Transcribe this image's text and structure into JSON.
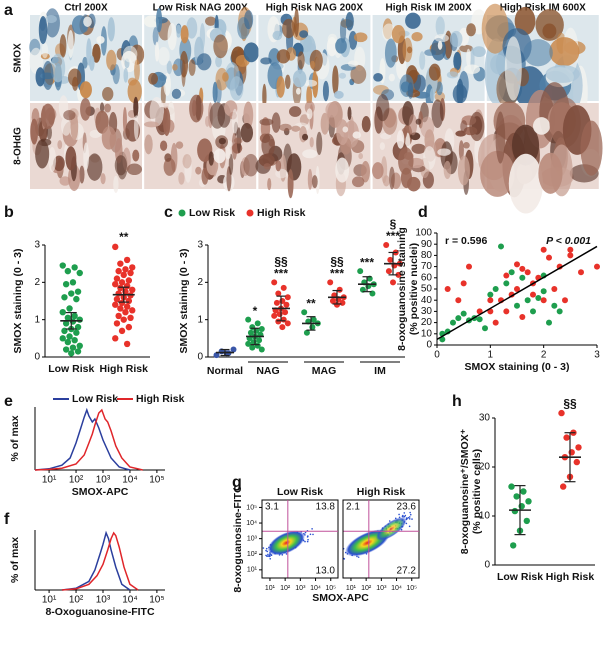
{
  "micrographs": {
    "label": "a",
    "columns": [
      "Ctrl 200X",
      "Low Risk NAG 200X",
      "High Risk NAG 200X",
      "High Risk IM 200X",
      "High Risk IM 600X"
    ],
    "rows": [
      "SMOX",
      "8-OHdG"
    ]
  },
  "chart_data": [
    {
      "type": "strip",
      "label": "b",
      "ylabel": "SMOX staining (0 - 3)",
      "categories": [
        "Low Risk",
        "High Risk"
      ],
      "colors": [
        "#1e9e4e",
        "#e8322a"
      ],
      "values": [
        [
          2.45,
          2.4,
          2.3,
          2.25,
          2.0,
          1.95,
          1.75,
          1.7,
          1.6,
          1.55,
          1.3,
          1.2,
          1.1,
          1.05,
          1.0,
          0.95,
          0.9,
          0.8,
          0.75,
          0.7,
          0.65,
          0.55,
          0.5,
          0.45,
          0.4,
          0.3,
          0.25,
          0.2,
          0.15,
          0.1
        ],
        [
          2.95,
          2.6,
          2.5,
          2.4,
          2.35,
          2.3,
          2.25,
          2.2,
          2.1,
          2.05,
          2.0,
          1.95,
          1.9,
          1.85,
          1.8,
          1.75,
          1.7,
          1.65,
          1.6,
          1.55,
          1.5,
          1.45,
          1.4,
          1.35,
          1.3,
          1.25,
          1.2,
          1.1,
          1.05,
          1.0,
          0.9,
          0.8,
          0.7,
          0.5,
          0.35
        ]
      ],
      "means": [
        0.97,
        1.67
      ],
      "errors": [
        0.22,
        0.2
      ],
      "significance": [
        null,
        "**"
      ],
      "ylim": [
        0,
        3
      ],
      "yticks": [
        0,
        1,
        2,
        3
      ]
    },
    {
      "type": "strip_grouped",
      "label": "c",
      "ylabel": "SMOX staining (0 - 3)",
      "control": {
        "name": "Normal",
        "color": "#3a56a8",
        "values": [
          0.05,
          0.1,
          0.15,
          0.2,
          0.1
        ],
        "mean": 0.12,
        "error": 0.08
      },
      "categories": [
        "NAG",
        "MAG",
        "IM"
      ],
      "series": [
        {
          "name": "Low Risk",
          "color": "#1e9e4e",
          "values": [
            [
              1.0,
              0.9,
              0.8,
              0.75,
              0.7,
              0.65,
              0.6,
              0.55,
              0.5,
              0.45,
              0.4,
              0.35,
              0.3,
              0.25,
              0.2
            ],
            [
              1.2,
              1.0,
              0.95,
              0.9,
              0.8,
              0.65
            ],
            [
              2.3,
              2.1,
              2.0,
              1.95,
              1.9,
              1.8,
              1.7
            ]
          ],
          "means": [
            0.55,
            0.9,
            1.95
          ],
          "errors": [
            0.22,
            0.18,
            0.2
          ],
          "annotations": [
            [
              "*"
            ],
            [
              "**"
            ],
            [
              "***"
            ]
          ]
        },
        {
          "name": "High Risk",
          "color": "#e8322a",
          "values": [
            [
              2.0,
              1.85,
              1.7,
              1.6,
              1.5,
              1.45,
              1.4,
              1.3,
              1.25,
              1.2,
              1.15,
              1.1,
              1.0,
              0.95,
              0.9,
              0.8
            ],
            [
              2.0,
              1.8,
              1.65,
              1.6,
              1.55,
              1.5,
              1.45,
              1.4
            ],
            [
              3.0,
              2.8,
              2.6,
              2.5,
              2.45,
              2.3,
              2.2,
              2.0
            ]
          ],
          "means": [
            1.3,
            1.6,
            2.5
          ],
          "errors": [
            0.33,
            0.18,
            0.3
          ],
          "annotations": [
            [
              "§§",
              "***"
            ],
            [
              "§§",
              "***"
            ],
            [
              "§",
              "***"
            ]
          ]
        }
      ],
      "ylim": [
        0,
        3
      ],
      "yticks": [
        0,
        1,
        2,
        3
      ]
    },
    {
      "type": "scatter",
      "label": "d",
      "ylabel": [
        "8-oxoguanosine staining",
        "(% positive nuclei)"
      ],
      "xlabel": "SMOX staining (0 - 3)",
      "annotations": [
        "r = 0.596",
        "P < 0.001"
      ],
      "series": [
        {
          "name": "Low Risk",
          "color": "#1e9e4e",
          "x": [
            0.1,
            0.1,
            0.2,
            0.3,
            0.4,
            0.5,
            0.6,
            0.7,
            0.8,
            0.9,
            1.0,
            1.1,
            1.2,
            1.3,
            1.5,
            1.6,
            1.7,
            1.8,
            1.9,
            2.0,
            2.1,
            2.2,
            2.3,
            2.0,
            1.4
          ],
          "values": [
            10,
            5,
            12,
            20,
            24,
            28,
            22,
            24,
            23,
            15,
            45,
            50,
            88,
            55,
            35,
            60,
            40,
            30,
            42,
            48,
            20,
            35,
            30,
            62,
            65
          ]
        },
        {
          "name": "High Risk",
          "color": "#e8322a",
          "x": [
            0.2,
            0.4,
            0.5,
            0.6,
            0.8,
            1.0,
            1.0,
            1.1,
            1.2,
            1.3,
            1.3,
            1.4,
            1.5,
            1.5,
            1.6,
            1.6,
            1.7,
            1.8,
            1.8,
            1.9,
            2.0,
            2.0,
            2.1,
            2.2,
            2.3,
            2.4,
            2.5,
            2.5,
            2.7,
            3.0
          ],
          "values": [
            50,
            40,
            55,
            70,
            30,
            30,
            40,
            20,
            40,
            30,
            62,
            45,
            72,
            50,
            68,
            25,
            65,
            45,
            55,
            60,
            40,
            85,
            78,
            50,
            70,
            40,
            80,
            85,
            65,
            70
          ]
        }
      ],
      "fit": {
        "x": [
          0,
          3
        ],
        "y": [
          5,
          88
        ]
      },
      "xlim": [
        0,
        3
      ],
      "xticks": [
        0,
        1,
        2,
        3
      ],
      "ylim": [
        0,
        100
      ],
      "yticks": [
        0,
        10,
        20,
        30,
        40,
        50,
        60,
        70,
        80,
        90,
        100
      ]
    },
    {
      "type": "line",
      "label": "e",
      "ylabel": "% of max",
      "xlabel": "SMOX-APC",
      "xscale": "log",
      "legend": true,
      "series": [
        {
          "name": "Low Risk",
          "color": "#2b3f9e",
          "x": [
            3,
            10,
            30,
            60,
            100,
            150,
            200,
            250,
            300,
            400,
            500,
            700,
            1000,
            2000,
            4000,
            10000
          ],
          "values": [
            0,
            2,
            8,
            20,
            45,
            70,
            88,
            100,
            90,
            80,
            85,
            70,
            50,
            20,
            5,
            0
          ]
        },
        {
          "name": "High Risk",
          "color": "#e0262a",
          "x": [
            3,
            10,
            30,
            100,
            200,
            300,
            400,
            500,
            700,
            900,
            1200,
            1500,
            2000,
            3000,
            5000,
            10000,
            30000
          ],
          "values": [
            0,
            1,
            3,
            10,
            25,
            45,
            60,
            75,
            95,
            100,
            85,
            80,
            65,
            40,
            20,
            5,
            0
          ]
        }
      ],
      "xlim": [
        3,
        200000
      ],
      "xticks": [
        {
          "value": 10,
          "label": "10¹"
        },
        {
          "value": 100,
          "label": "10²"
        },
        {
          "value": 1000,
          "label": "10³"
        },
        {
          "value": 10000,
          "label": "10⁴"
        },
        {
          "value": 100000,
          "label": "10⁵"
        }
      ],
      "ylim": [
        0,
        105
      ]
    },
    {
      "type": "line",
      "label": "f",
      "ylabel": "% of max",
      "xlabel": "8-Oxoguanosine-FITC",
      "xscale": "log",
      "legend": false,
      "series": [
        {
          "name": "Low Risk",
          "color": "#2b3f9e",
          "x": [
            30,
            100,
            300,
            500,
            800,
            1000,
            1300,
            1600,
            2000,
            3000,
            5000,
            10000
          ],
          "values": [
            0,
            3,
            15,
            35,
            65,
            80,
            100,
            90,
            70,
            40,
            10,
            0
          ]
        },
        {
          "name": "High Risk",
          "color": "#e0262a",
          "x": [
            30,
            100,
            300,
            600,
            1000,
            1500,
            2000,
            2500,
            3000,
            4000,
            6000,
            10000,
            20000
          ],
          "values": [
            0,
            2,
            10,
            25,
            45,
            70,
            90,
            100,
            95,
            75,
            40,
            10,
            0
          ]
        }
      ],
      "xlim": [
        3,
        200000
      ],
      "xticks": [
        {
          "value": 10,
          "label": "10¹"
        },
        {
          "value": 100,
          "label": "10²"
        },
        {
          "value": 1000,
          "label": "10³"
        },
        {
          "value": 10000,
          "label": "10⁴"
        },
        {
          "value": 100000,
          "label": "10⁵"
        }
      ],
      "ylim": [
        0,
        105
      ]
    },
    {
      "type": "flow",
      "label": "g",
      "ylabel": "8-oxoguanosine-FITC",
      "xlabel": "SMOX-APC",
      "xscale": "log",
      "yscale": "log",
      "panels": [
        {
          "title": "Low Risk",
          "values": [
            3.1,
            13.8,
            13
          ],
          "value_labels": [
            "3.1",
            "13.8",
            "13.0"
          ]
        },
        {
          "title": "High Risk",
          "values": [
            2.1,
            23.6,
            27.2
          ],
          "value_labels": [
            "2.1",
            "23.6",
            "27.2"
          ]
        }
      ],
      "gate_x": 150,
      "gate_y": 3000,
      "xlim": [
        3,
        300000
      ],
      "ylim": [
        3,
        300000
      ],
      "xticks": [
        {
          "value": 10,
          "label": "10¹"
        },
        {
          "value": 100,
          "label": "10²"
        },
        {
          "value": 1000,
          "label": "10³"
        },
        {
          "value": 10000,
          "label": "10⁴"
        },
        {
          "value": 100000,
          "label": "10⁵"
        }
      ],
      "yticks": [
        {
          "value": 10,
          "label": "10¹"
        },
        {
          "value": 100,
          "label": "10²"
        },
        {
          "value": 1000,
          "label": "10³"
        },
        {
          "value": 10000,
          "label": "10⁴"
        },
        {
          "value": 100000,
          "label": "10⁵"
        }
      ]
    },
    {
      "type": "strip",
      "label": "h",
      "ylabel": [
        "8-oxoguanosine⁺/SMOX⁺",
        "(% positive cells)"
      ],
      "categories": [
        "Low Risk",
        "High Risk"
      ],
      "colors": [
        "#1e9e4e",
        "#e8322a"
      ],
      "values": [
        [
          16,
          15,
          14,
          13,
          12,
          11,
          9,
          7,
          4
        ],
        [
          31,
          27,
          26,
          24,
          23,
          22,
          21,
          18,
          16
        ]
      ],
      "means": [
        11.2,
        22
      ],
      "errors": [
        5,
        5
      ],
      "significance": [
        null,
        "§§"
      ],
      "ylim": [
        0,
        30
      ],
      "yticks": [
        0,
        10,
        20,
        30
      ]
    }
  ]
}
